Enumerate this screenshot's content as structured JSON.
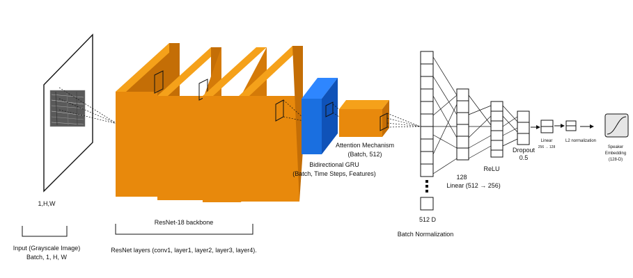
{
  "colors": {
    "orange_front": "#e8890c",
    "orange_top": "#f5a11a",
    "orange_side": "#c46e06",
    "blue_front": "#1a6fe0",
    "blue_top": "#2e86ff",
    "blue_side": "#0f52b8",
    "line": "#111111",
    "sigmoid_fill": "#e6e6e6"
  },
  "input": {
    "dims_label": "1,H,W",
    "title": "Input (Grayscale Image)",
    "subtitle": "Batch, 1, H, W"
  },
  "resnet": {
    "bracket_label": "ResNet-18 backbone",
    "description": "ResNet layers (conv1, layer1, layer2, layer3, layer4)."
  },
  "gru": {
    "title": "Bidirectional GRU",
    "subtitle": "(Batch, Time Steps, Features)"
  },
  "attention": {
    "title": "Attention Mechanism",
    "subtitle": "(Batch, 512)"
  },
  "fc": {
    "input_dim_label": "512 D",
    "batch_norm_label": "Batch Normalization",
    "hidden_count_label": "128",
    "linear1_label": "Linear (512 → 256)",
    "relu_label": "ReLU",
    "dropout_label": "Dropout",
    "dropout_value": "0.5",
    "linear2_label": "Linear",
    "linear2_sub": "256 → 128",
    "l2_label": "L2 normalization",
    "output_label_1": "Speaker",
    "output_label_2": "Embedding",
    "output_label_3": "(128-D)"
  }
}
